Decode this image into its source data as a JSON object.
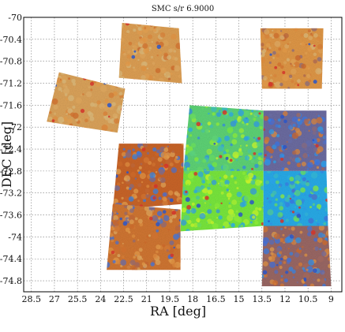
{
  "chart_data": {
    "type": "heatmap",
    "title": "SMC s/r 6.9000",
    "xlabel": "RA [deg]",
    "ylabel": "DEC [deg]",
    "xlim": [
      29.0,
      8.3
    ],
    "ylim": [
      -75.0,
      -70.0
    ],
    "x_ticks": [
      28.5,
      27,
      25.5,
      24,
      22.5,
      21,
      19.5,
      18,
      16.5,
      15,
      13.5,
      12,
      10.5,
      9
    ],
    "x_tick_labels": [
      "28.5",
      "27",
      "25.5",
      "24",
      "22.5",
      "21",
      "19.5",
      "18",
      "16.5",
      "15",
      "13.5",
      "12",
      "10.5",
      "9"
    ],
    "y_ticks": [
      -70,
      -70.4,
      -70.8,
      -71.2,
      -71.6,
      -72,
      -72.4,
      -72.8,
      -73.2,
      -73.6,
      -74,
      -74.4,
      -74.8
    ],
    "y_tick_labels": [
      "-70",
      "-70.4",
      "-70.8",
      "-71.2",
      "-71.6",
      "-72",
      "-72.4",
      "-72.8",
      "-73.2",
      "-73.6",
      "-74",
      "-74.4",
      "-74.8"
    ],
    "grid": true,
    "tiles": [
      {
        "id": "t1",
        "level": 0.15,
        "corners": [
          [
            22.6,
            -70.1
          ],
          [
            18.9,
            -70.2
          ],
          [
            18.7,
            -71.2
          ],
          [
            22.8,
            -71.1
          ]
        ]
      },
      {
        "id": "t2",
        "level": 0.12,
        "corners": [
          [
            26.7,
            -71.0
          ],
          [
            22.4,
            -71.3
          ],
          [
            22.9,
            -72.1
          ],
          [
            27.5,
            -71.9
          ]
        ]
      },
      {
        "id": "t3",
        "level": 0.2,
        "corners": [
          [
            13.6,
            -70.2
          ],
          [
            9.5,
            -70.2
          ],
          [
            9.6,
            -71.3
          ],
          [
            13.5,
            -71.3
          ]
        ]
      },
      {
        "id": "t4",
        "level": 0.8,
        "corners": [
          [
            18.2,
            -71.6
          ],
          [
            13.4,
            -71.7
          ],
          [
            13.4,
            -72.8
          ],
          [
            18.6,
            -72.8
          ]
        ]
      },
      {
        "id": "t5",
        "level": 0.45,
        "corners": [
          [
            13.4,
            -71.7
          ],
          [
            9.3,
            -71.7
          ],
          [
            9.3,
            -72.8
          ],
          [
            13.4,
            -72.8
          ]
        ]
      },
      {
        "id": "t6",
        "level": 0.35,
        "corners": [
          [
            22.8,
            -72.3
          ],
          [
            18.6,
            -72.3
          ],
          [
            18.6,
            -73.4
          ],
          [
            23.2,
            -73.5
          ]
        ]
      },
      {
        "id": "t7",
        "level": 0.85,
        "corners": [
          [
            18.6,
            -72.8
          ],
          [
            13.4,
            -72.8
          ],
          [
            13.4,
            -73.8
          ],
          [
            18.8,
            -73.9
          ]
        ]
      },
      {
        "id": "t8",
        "level": 0.7,
        "corners": [
          [
            13.4,
            -72.8
          ],
          [
            9.3,
            -72.8
          ],
          [
            9.2,
            -73.8
          ],
          [
            13.4,
            -73.8
          ]
        ]
      },
      {
        "id": "t9",
        "level": 0.3,
        "corners": [
          [
            23.2,
            -73.4
          ],
          [
            18.8,
            -73.5
          ],
          [
            18.8,
            -74.6
          ],
          [
            23.6,
            -74.6
          ]
        ]
      },
      {
        "id": "t10",
        "level": 0.4,
        "corners": [
          [
            13.4,
            -73.8
          ],
          [
            9.2,
            -73.8
          ],
          [
            9.0,
            -74.9
          ],
          [
            13.5,
            -74.9
          ]
        ]
      }
    ]
  }
}
